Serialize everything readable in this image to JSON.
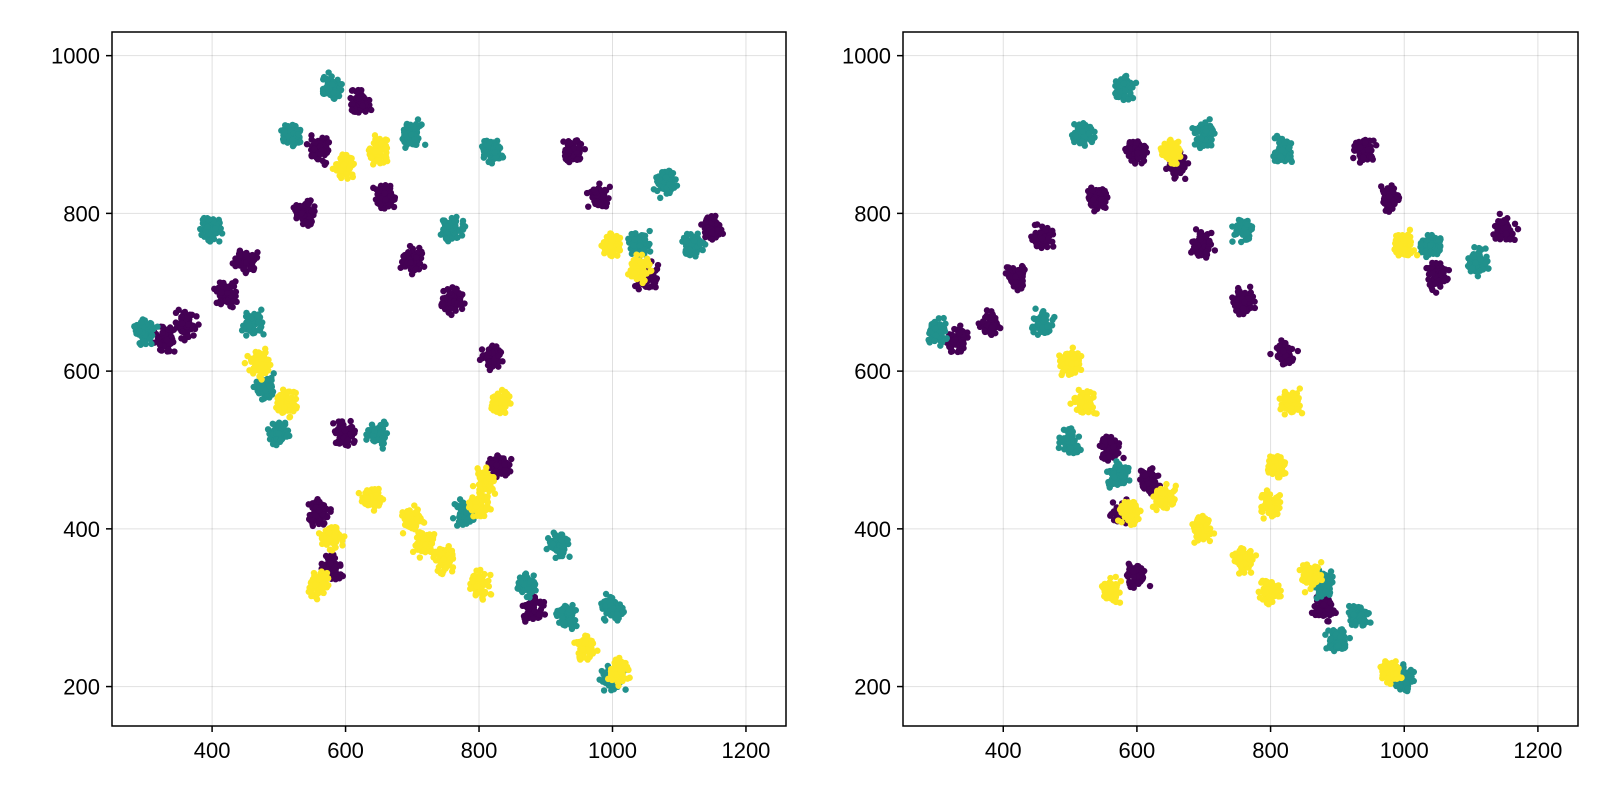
{
  "colors": {
    "class_a": "#440154",
    "class_b": "#21918c",
    "class_c": "#fde725",
    "grid": "#e0e0e0",
    "frame": "#000000"
  },
  "chart_data": [
    {
      "type": "scatter",
      "title": "",
      "xlabel": "",
      "ylabel": "",
      "xlim": [
        250,
        1260
      ],
      "ylim": [
        150,
        1030
      ],
      "xticks": [
        400,
        600,
        800,
        1000,
        1200
      ],
      "yticks": [
        200,
        400,
        600,
        800,
        1000
      ],
      "xtick_labels": [
        "400",
        "600",
        "800",
        "1000",
        "1200"
      ],
      "ytick_labels": [
        "200",
        "400",
        "600",
        "800",
        "1000"
      ],
      "grid": true,
      "marker": "dot",
      "series": [
        {
          "color": "#440154",
          "points": [
            [
              330,
              640
            ],
            [
              360,
              660
            ],
            [
              420,
              700
            ],
            [
              450,
              740
            ],
            [
              540,
              800
            ],
            [
              560,
              880
            ],
            [
              620,
              940
            ],
            [
              660,
              820
            ],
            [
              700,
              740
            ],
            [
              760,
              690
            ],
            [
              820,
              620
            ],
            [
              830,
              480
            ],
            [
              600,
              520
            ],
            [
              560,
              420
            ],
            [
              580,
              350
            ],
            [
              880,
              300
            ],
            [
              940,
              880
            ],
            [
              980,
              820
            ],
            [
              1050,
              720
            ],
            [
              1150,
              780
            ]
          ]
        },
        {
          "color": "#21918c",
          "points": [
            [
              300,
              650
            ],
            [
              400,
              780
            ],
            [
              460,
              660
            ],
            [
              520,
              900
            ],
            [
              580,
              960
            ],
            [
              700,
              900
            ],
            [
              820,
              880
            ],
            [
              870,
              330
            ],
            [
              930,
              290
            ],
            [
              1000,
              210
            ],
            [
              1040,
              760
            ],
            [
              1080,
              840
            ],
            [
              1120,
              760
            ],
            [
              760,
              780
            ],
            [
              650,
              520
            ],
            [
              500,
              520
            ],
            [
              480,
              580
            ],
            [
              780,
              420
            ],
            [
              920,
              380
            ],
            [
              1000,
              300
            ]
          ]
        },
        {
          "color": "#fde725",
          "points": [
            [
              560,
              330
            ],
            [
              640,
              440
            ],
            [
              700,
              410
            ],
            [
              750,
              360
            ],
            [
              800,
              330
            ],
            [
              830,
              560
            ],
            [
              810,
              460
            ],
            [
              800,
              430
            ],
            [
              1000,
              760
            ],
            [
              1040,
              730
            ],
            [
              960,
              250
            ],
            [
              1010,
              220
            ],
            [
              650,
              880
            ],
            [
              600,
              860
            ],
            [
              510,
              560
            ],
            [
              470,
              610
            ],
            [
              580,
              390
            ],
            [
              720,
              380
            ]
          ]
        }
      ]
    },
    {
      "type": "scatter",
      "title": "",
      "xlabel": "",
      "ylabel": "",
      "xlim": [
        250,
        1260
      ],
      "ylim": [
        150,
        1030
      ],
      "xticks": [
        400,
        600,
        800,
        1000,
        1200
      ],
      "yticks": [
        200,
        400,
        600,
        800,
        1000
      ],
      "xtick_labels": [
        "400",
        "600",
        "800",
        "1000",
        "1200"
      ],
      "ytick_labels": [
        "200",
        "400",
        "600",
        "800",
        "1000"
      ],
      "grid": true,
      "marker": "dot",
      "series": [
        {
          "color": "#440154",
          "points": [
            [
              330,
              640
            ],
            [
              380,
              660
            ],
            [
              420,
              720
            ],
            [
              460,
              770
            ],
            [
              540,
              820
            ],
            [
              600,
              880
            ],
            [
              660,
              860
            ],
            [
              700,
              760
            ],
            [
              760,
              690
            ],
            [
              820,
              620
            ],
            [
              560,
              500
            ],
            [
              580,
              420
            ],
            [
              600,
              340
            ],
            [
              880,
              300
            ],
            [
              940,
              880
            ],
            [
              980,
              820
            ],
            [
              1050,
              720
            ],
            [
              1150,
              780
            ],
            [
              620,
              460
            ]
          ]
        },
        {
          "color": "#21918c",
          "points": [
            [
              300,
              650
            ],
            [
              460,
              660
            ],
            [
              520,
              900
            ],
            [
              580,
              960
            ],
            [
              700,
              900
            ],
            [
              820,
              880
            ],
            [
              880,
              330
            ],
            [
              930,
              290
            ],
            [
              1000,
              210
            ],
            [
              1040,
              760
            ],
            [
              1110,
              740
            ],
            [
              760,
              780
            ],
            [
              500,
              510
            ],
            [
              570,
              470
            ],
            [
              900,
              260
            ]
          ]
        },
        {
          "color": "#fde725",
          "points": [
            [
              560,
              320
            ],
            [
              640,
              440
            ],
            [
              700,
              400
            ],
            [
              760,
              360
            ],
            [
              800,
              320
            ],
            [
              830,
              560
            ],
            [
              810,
              480
            ],
            [
              800,
              430
            ],
            [
              1000,
              760
            ],
            [
              980,
              220
            ],
            [
              650,
              880
            ],
            [
              520,
              560
            ],
            [
              500,
              610
            ],
            [
              860,
              340
            ],
            [
              590,
              420
            ]
          ]
        }
      ]
    }
  ]
}
